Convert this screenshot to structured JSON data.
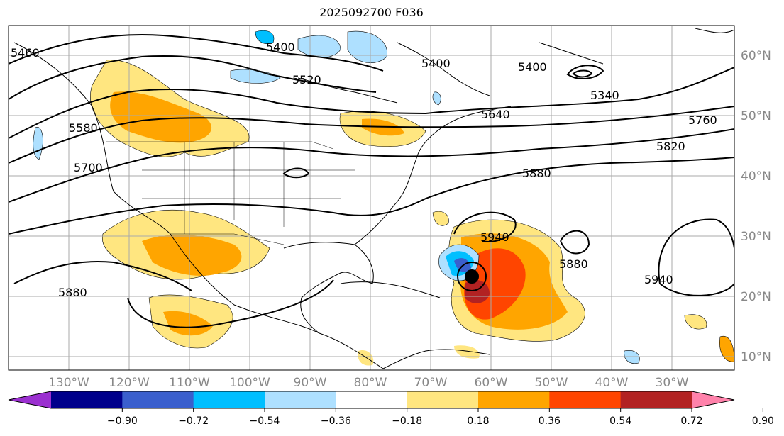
{
  "title": "2025092700 F036",
  "lat_labels": [
    "60°N",
    "50°N",
    "40°N",
    "30°N",
    "20°N",
    "10°N"
  ],
  "lon_labels": [
    "130°W",
    "120°W",
    "110°W",
    "100°W",
    "90°W",
    "80°W",
    "70°W",
    "60°W",
    "50°W",
    "40°W",
    "30°W"
  ],
  "contour_labels": [
    "5400",
    "5520",
    "5640",
    "5760",
    "5820",
    "5880",
    "5940",
    "5880",
    "5940",
    "5880",
    "5700",
    "5580",
    "5400",
    "5340",
    "5400",
    "5460"
  ],
  "colorbar": {
    "ticks": [
      "−0.90",
      "−0.72",
      "−0.54",
      "−0.36",
      "−0.18",
      "0.18",
      "0.36",
      "0.54",
      "0.72",
      "0.90"
    ],
    "colors": [
      "#9b30d0",
      "#00008b",
      "#3a5fcd",
      "#00bfff",
      "#aee0ff",
      "#ffffff",
      "#ffe680",
      "#ffa500",
      "#ff4500",
      "#b22222",
      "#ff82ab"
    ]
  }
}
